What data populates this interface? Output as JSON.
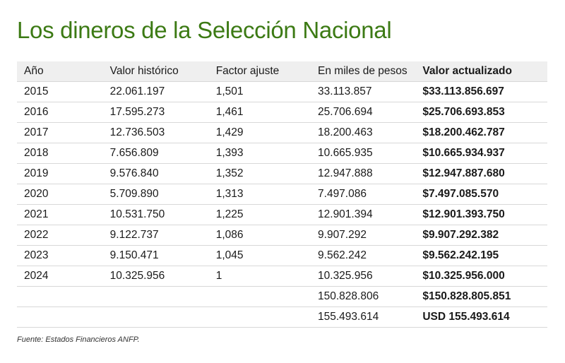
{
  "title": "Los dineros de la Selección Nacional",
  "headers": [
    "Año",
    "Valor histórico",
    "Factor ajuste",
    "En miles de pesos",
    "Valor actualizado"
  ],
  "rows": [
    {
      "year": "2015",
      "historico": "22.061.197",
      "factor": "1,501",
      "miles": "33.113.857",
      "actualizado": "$33.113.856.697"
    },
    {
      "year": "2016",
      "historico": "17.595.273",
      "factor": "1,461",
      "miles": "25.706.694",
      "actualizado": "$25.706.693.853"
    },
    {
      "year": "2017",
      "historico": "12.736.503",
      "factor": "1,429",
      "miles": "18.200.463",
      "actualizado": "$18.200.462.787"
    },
    {
      "year": "2018",
      "historico": "7.656.809",
      "factor": "1,393",
      "miles": "10.665.935",
      "actualizado": "$10.665.934.937"
    },
    {
      "year": "2019",
      "historico": "9.576.840",
      "factor": "1,352",
      "miles": "12.947.888",
      "actualizado": "$12.947.887.680"
    },
    {
      "year": "2020",
      "historico": "5.709.890",
      "factor": "1,313",
      "miles": "7.497.086",
      "actualizado": "$7.497.085.570"
    },
    {
      "year": "2021",
      "historico": "10.531.750",
      "factor": "1,225",
      "miles": "12.901.394",
      "actualizado": "$12.901.393.750"
    },
    {
      "year": "2022",
      "historico": "9.122.737",
      "factor": "1,086",
      "miles": "9.907.292",
      "actualizado": "$9.907.292.382"
    },
    {
      "year": "2023",
      "historico": "9.150.471",
      "factor": "1,045",
      "miles": "9.562.242",
      "actualizado": "$9.562.242.195"
    },
    {
      "year": "2024",
      "historico": "10.325.956",
      "factor": "1",
      "miles": "10.325.956",
      "actualizado": "$10.325.956.000"
    }
  ],
  "totals": [
    {
      "miles": "150.828.806",
      "actualizado": "$150.828.805.851"
    },
    {
      "miles": "155.493.614",
      "actualizado": "USD 155.493.614"
    }
  ],
  "source": "Fuente: Estados Financieros ANFP.",
  "colors": {
    "title": "#3c7a14",
    "header_bg": "#efefef",
    "rule": "#d8d8d8"
  }
}
